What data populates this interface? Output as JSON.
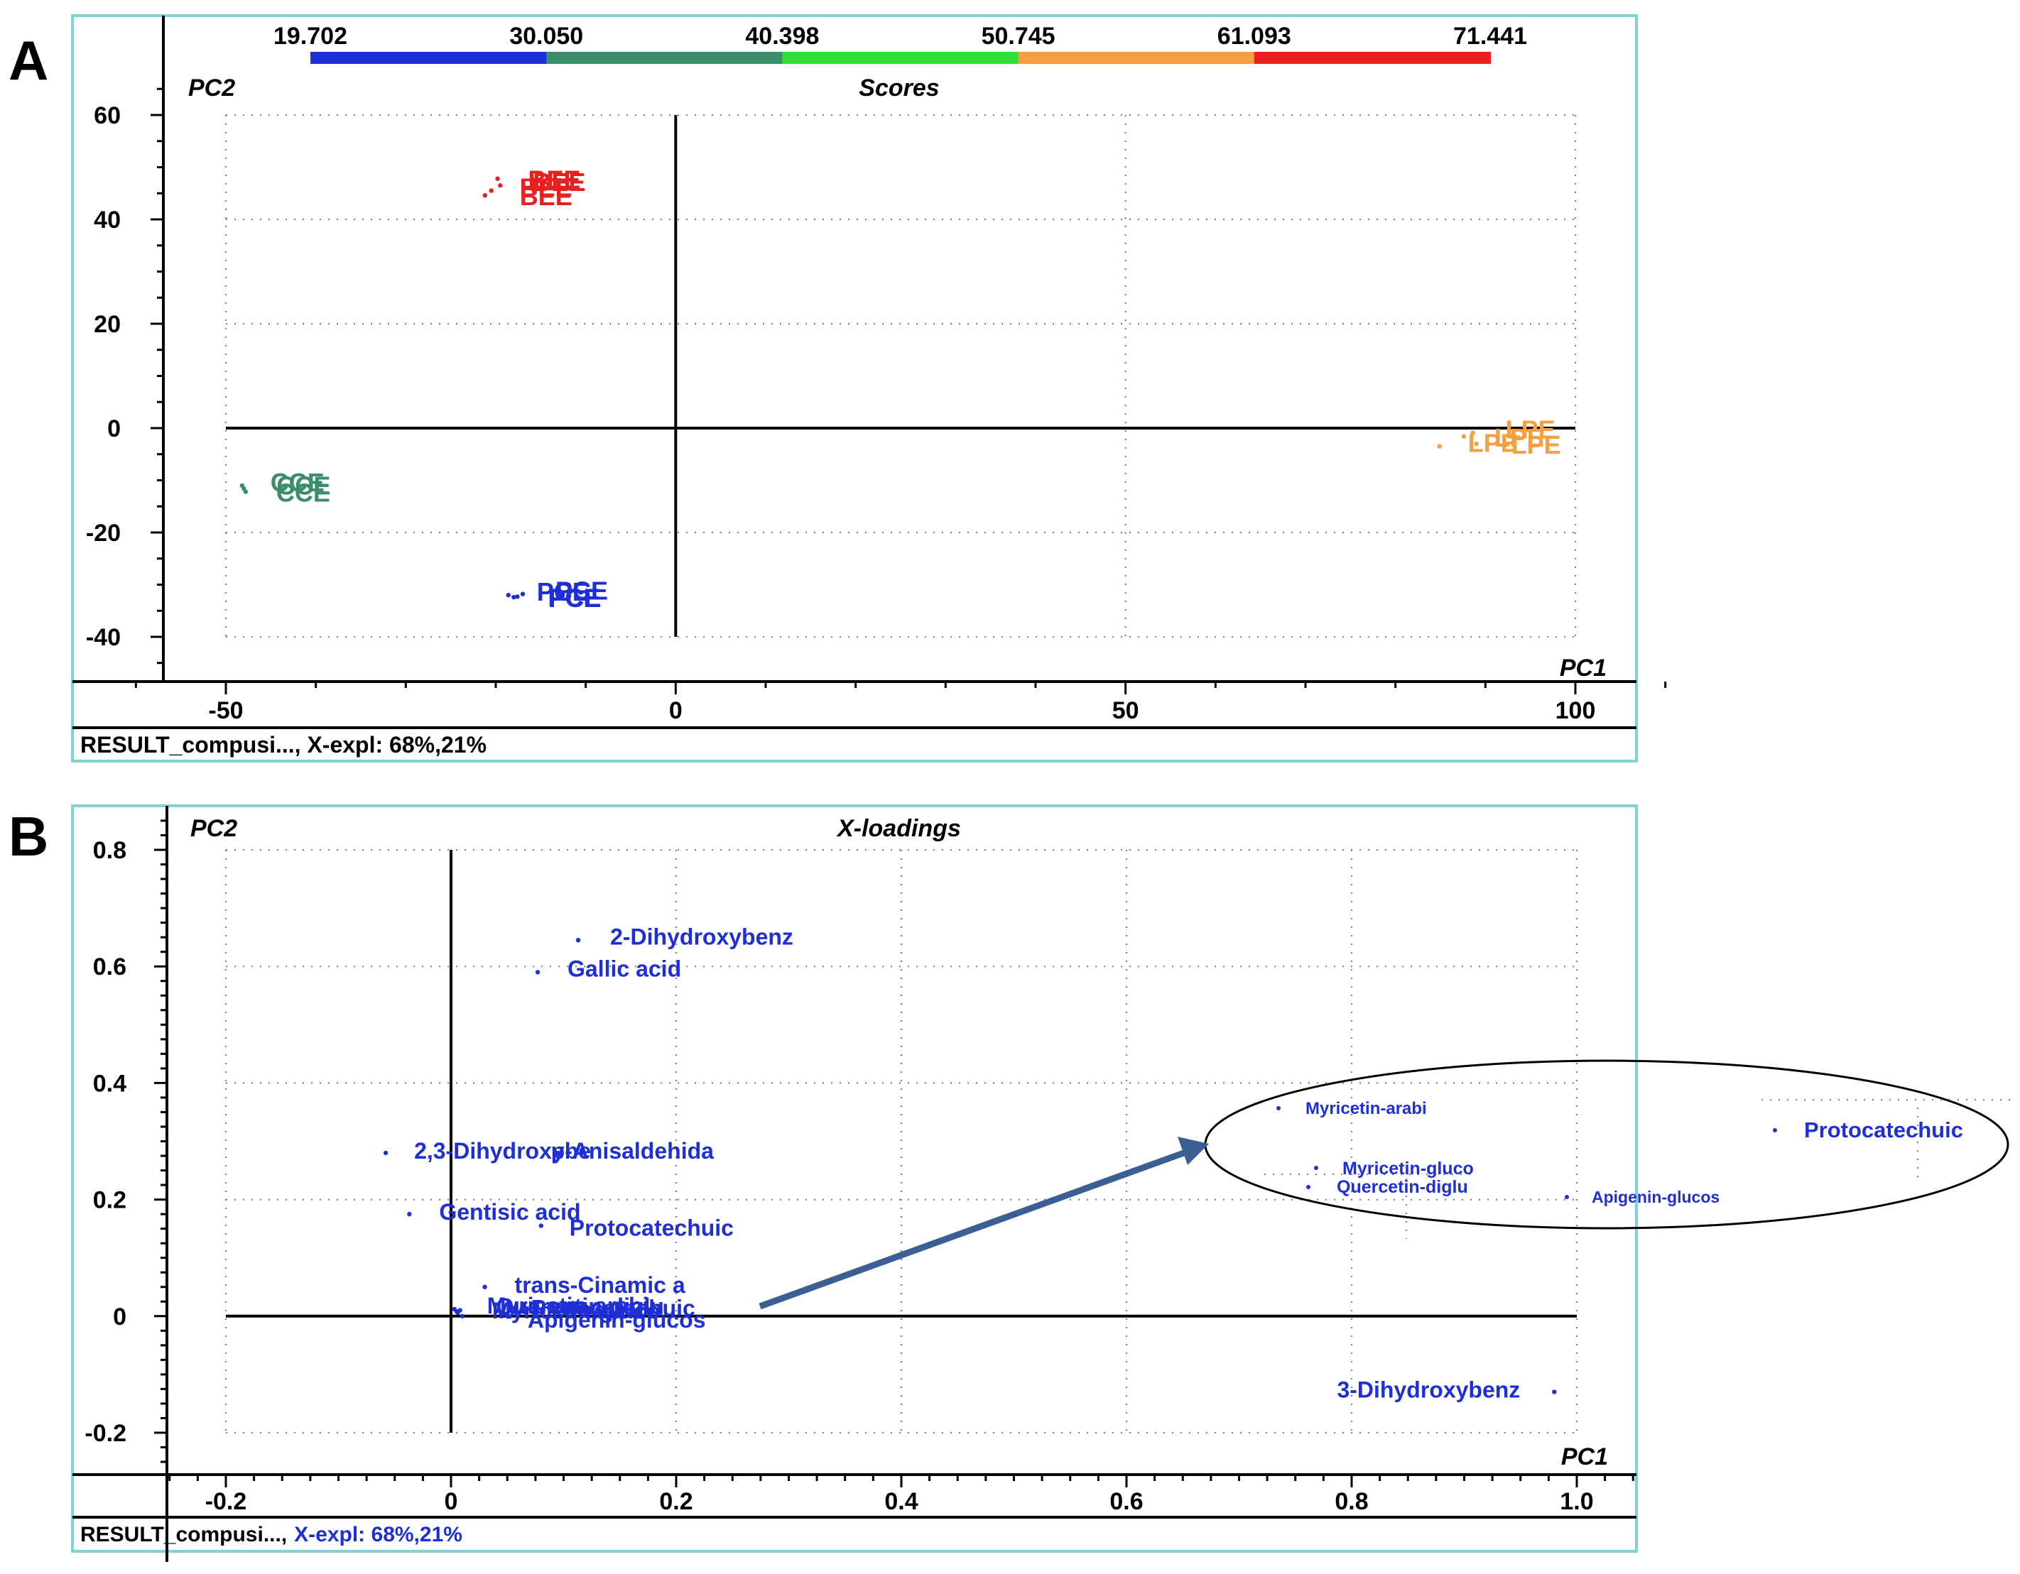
{
  "panel_labels": {
    "a": "A",
    "b": "B"
  },
  "chart_data": [
    {
      "type": "scatter",
      "title": "Scores",
      "xlabel": "PC1",
      "ylabel": "PC2",
      "xlim": [
        -50,
        100
      ],
      "ylim": [
        -40,
        60
      ],
      "xticks": [
        "-50",
        "0",
        "50",
        "100"
      ],
      "yticks": [
        "60",
        "40",
        "20",
        "0",
        "-20",
        "-40"
      ],
      "footer": "RESULT_compusi..., X-expl: 68%,21%",
      "colorbar": {
        "ticks": [
          "19.702",
          "30.050",
          "40.398",
          "50.745",
          "61.093",
          "71.441"
        ],
        "colors": [
          "#1f2fd6",
          "#3a8f6a",
          "#33dd33",
          "#f5a040",
          "#e82020"
        ]
      },
      "series": [
        {
          "name": "BEE",
          "color": "#e82020",
          "points": [
            [
              -20.5,
              45.5
            ],
            [
              -19.8,
              47.8
            ],
            [
              -19.5,
              46.5
            ],
            [
              -21.2,
              44.6
            ]
          ],
          "labels": [
            "BEE",
            "BEE",
            "BEE",
            "BEE"
          ]
        },
        {
          "name": "CCE",
          "color": "#3a8f6a",
          "points": [
            [
              -48.2,
              -11.0
            ],
            [
              -47.8,
              -12.2
            ],
            [
              -48.0,
              -11.6
            ]
          ],
          "labels": [
            "CCE",
            "CCE",
            "CCE"
          ]
        },
        {
          "name": "PCE",
          "color": "#1f2fd6",
          "points": [
            [
              -18.6,
              -32.0
            ],
            [
              -17.6,
              -32.3
            ],
            [
              -17.0,
              -31.8
            ],
            [
              -18.0,
              -32.4
            ]
          ],
          "labels": [
            "PCE",
            "PCE",
            "PCE",
            "PCE"
          ]
        },
        {
          "name": "LPE",
          "color": "#f5a040",
          "points": [
            [
              84.9,
              -3.5
            ],
            [
              87.6,
              -1.6
            ],
            [
              88.6,
              -0.9
            ],
            [
              89.0,
              -3.0
            ]
          ],
          "labels": [
            "LPE",
            "LPE",
            "LPE",
            "LPE"
          ]
        }
      ]
    },
    {
      "type": "scatter",
      "title": "X-loadings",
      "xlabel": "PC1",
      "ylabel": "PC2",
      "xlim": [
        -0.2,
        1.0
      ],
      "ylim": [
        -0.2,
        0.8
      ],
      "xticks": [
        "-0.2",
        "0",
        "0.2",
        "0.4",
        "0.6",
        "0.8",
        "1.0"
      ],
      "yticks": [
        "0.8",
        "0.6",
        "0.4",
        "0.2",
        "0",
        "-0.2"
      ],
      "footer_prefix": "RESULT_compusi...,",
      "footer_suffix": "X-expl: 68%,21%",
      "points": [
        {
          "label": "2-Dihydroxybenz",
          "x": 0.113,
          "y": 0.645
        },
        {
          "label": "Gallic acid",
          "x": 0.077,
          "y": 0.59
        },
        {
          "label": "2,3-Dihydroxybe",
          "x": -0.058,
          "y": 0.28
        },
        {
          "label": "p-Anisaldehida",
          "x": 0.095,
          "y": 0.28
        },
        {
          "label": "Gentisic acid",
          "x": -0.037,
          "y": 0.175
        },
        {
          "label": "Protocatechuic",
          "x": 0.08,
          "y": 0.155
        },
        {
          "label": "trans-Cinamic a",
          "x": 0.03,
          "y": 0.05
        },
        {
          "label": "Myricetin-arabi",
          "x": 0.003,
          "y": 0.012
        },
        {
          "label": "Myricetin-gluco",
          "x": 0.005,
          "y": 0.008
        },
        {
          "label": "Quercetin-diglu",
          "x": 0.006,
          "y": 0.006
        },
        {
          "label": "Protocatechuic",
          "x": 0.008,
          "y": 0.01
        },
        {
          "label": "Apigenin-glucos",
          "x": 0.01,
          "y": 0.0
        },
        {
          "label": "3-Dihydroxybenz",
          "x": 0.98,
          "y": -0.13
        }
      ],
      "zoom_callout": {
        "labels": [
          "Myricetin-arabi",
          "Protocatechuic",
          "Myricetin-gluco",
          "Quercetin-diglu",
          "Apigenin-glucos"
        ]
      }
    }
  ]
}
